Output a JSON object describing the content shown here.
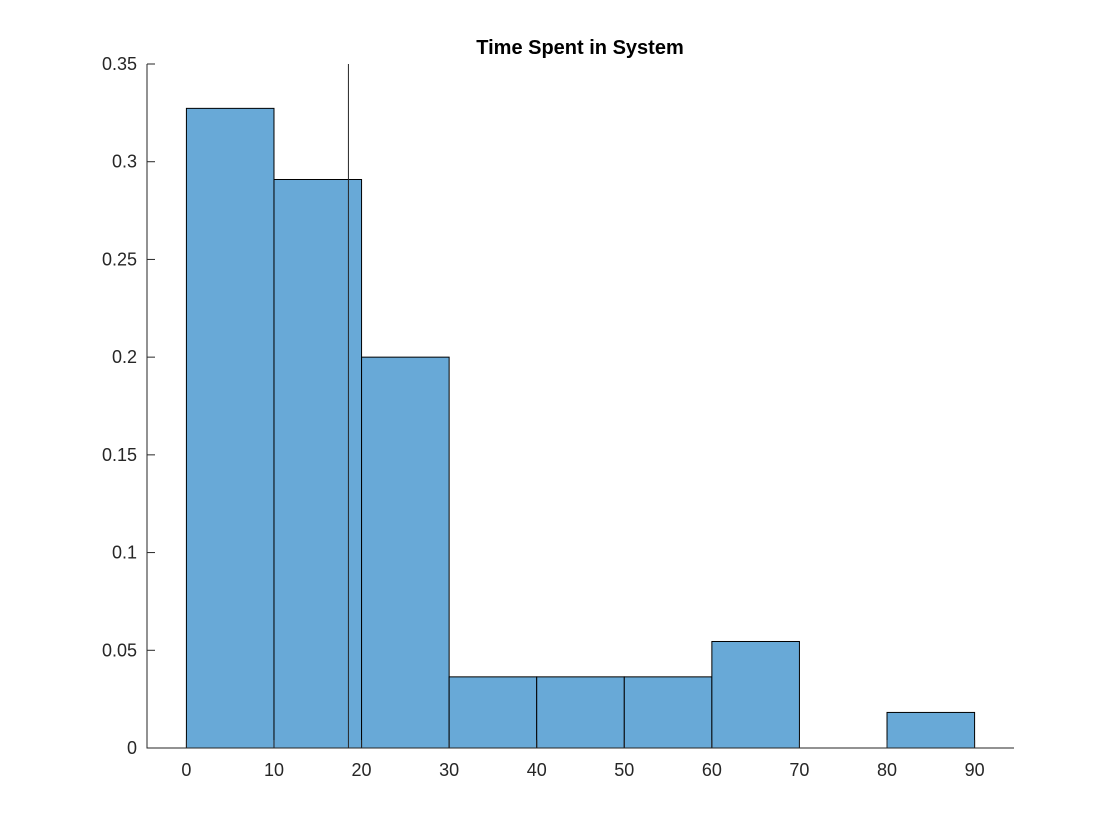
{
  "chart_data": {
    "type": "bar",
    "title": "Time Spent in System",
    "xlabel": "",
    "ylabel": "",
    "bin_edges": [
      0,
      10,
      20,
      30,
      40,
      50,
      60,
      70,
      80,
      90
    ],
    "values": [
      0.3273,
      0.2909,
      0.2,
      0.0364,
      0.0364,
      0.0364,
      0.0545,
      0,
      0.0182
    ],
    "xlim": [
      -4.5,
      94.5
    ],
    "ylim": [
      0,
      0.35
    ],
    "x_ticks": [
      0,
      10,
      20,
      30,
      40,
      50,
      60,
      70,
      80,
      90
    ],
    "y_ticks": [
      0,
      0.05,
      0.1,
      0.15,
      0.2,
      0.25,
      0.3,
      0.35
    ],
    "x_tick_labels": [
      "0",
      "10",
      "20",
      "30",
      "40",
      "50",
      "60",
      "70",
      "80",
      "90"
    ],
    "y_tick_labels": [
      "0",
      "0.05",
      "0.1",
      "0.15",
      "0.2",
      "0.25",
      "0.3",
      "0.35"
    ],
    "reference_line_x": 18.5,
    "grid": false,
    "bar_color": "#68a9d7",
    "edge_color": "#000000"
  }
}
